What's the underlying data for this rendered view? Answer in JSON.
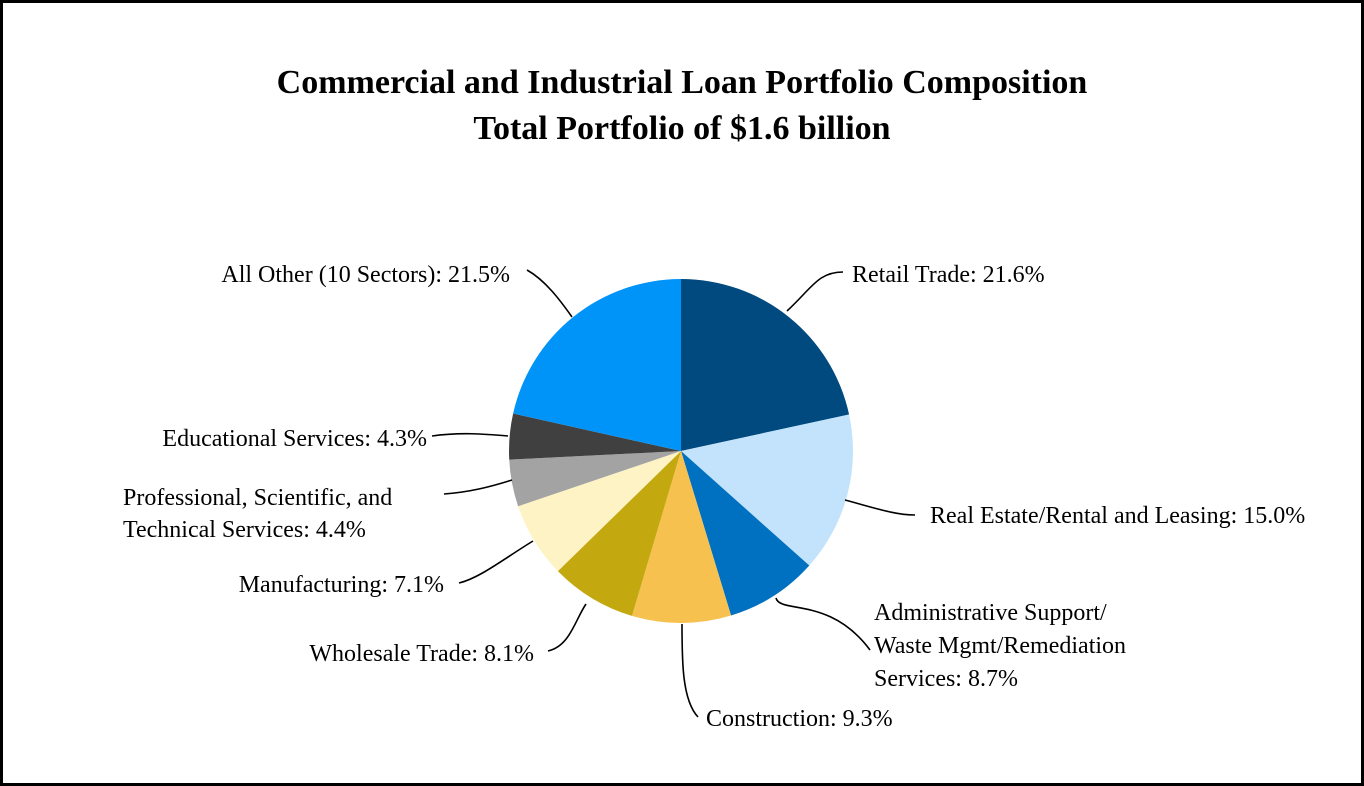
{
  "chart_data": {
    "type": "pie",
    "title": "Commercial and Industrial Loan Portfolio Composition",
    "subtitle": "Total Portfolio of $1.6 billion",
    "slices": [
      {
        "label": "Retail Trade: 21.6%",
        "name": "Retail Trade",
        "value": 21.6,
        "color": "#004a80"
      },
      {
        "label": "Real Estate/Rental and Leasing: 15.0%",
        "name": "Real Estate/Rental and Leasing",
        "value": 15.0,
        "color": "#c2e3fb"
      },
      {
        "label": "Administrative Support/ Waste Mgmt/Remediation Services: 8.7%",
        "lines": [
          "Administrative Support/",
          "Waste Mgmt/Remediation",
          "Services: 8.7%"
        ],
        "name": "Administrative Support/ Waste Mgmt/Remediation Services",
        "value": 8.7,
        "color": "#0070c0"
      },
      {
        "label": "Construction: 9.3%",
        "name": "Construction",
        "value": 9.3,
        "color": "#f7c150"
      },
      {
        "label": "Wholesale Trade: 8.1%",
        "name": "Wholesale Trade",
        "value": 8.1,
        "color": "#c4a810"
      },
      {
        "label": "Manufacturing: 7.1%",
        "name": "Manufacturing",
        "value": 7.1,
        "color": "#fdf3c4"
      },
      {
        "label": "Professional, Scientific, and Technical Services: 4.4%",
        "lines": [
          "Professional, Scientific, and",
          "Technical Services: 4.4%"
        ],
        "name": "Professional, Scientific, and Technical Services",
        "value": 4.4,
        "color": "#a3a3a3"
      },
      {
        "label": "Educational Services: 4.3%",
        "name": "Educational Services",
        "value": 4.3,
        "color": "#404040"
      },
      {
        "label": "All Other (10 Sectors): 21.5%",
        "name": "All Other (10 Sectors)",
        "value": 21.5,
        "color": "#0093f8"
      }
    ]
  }
}
